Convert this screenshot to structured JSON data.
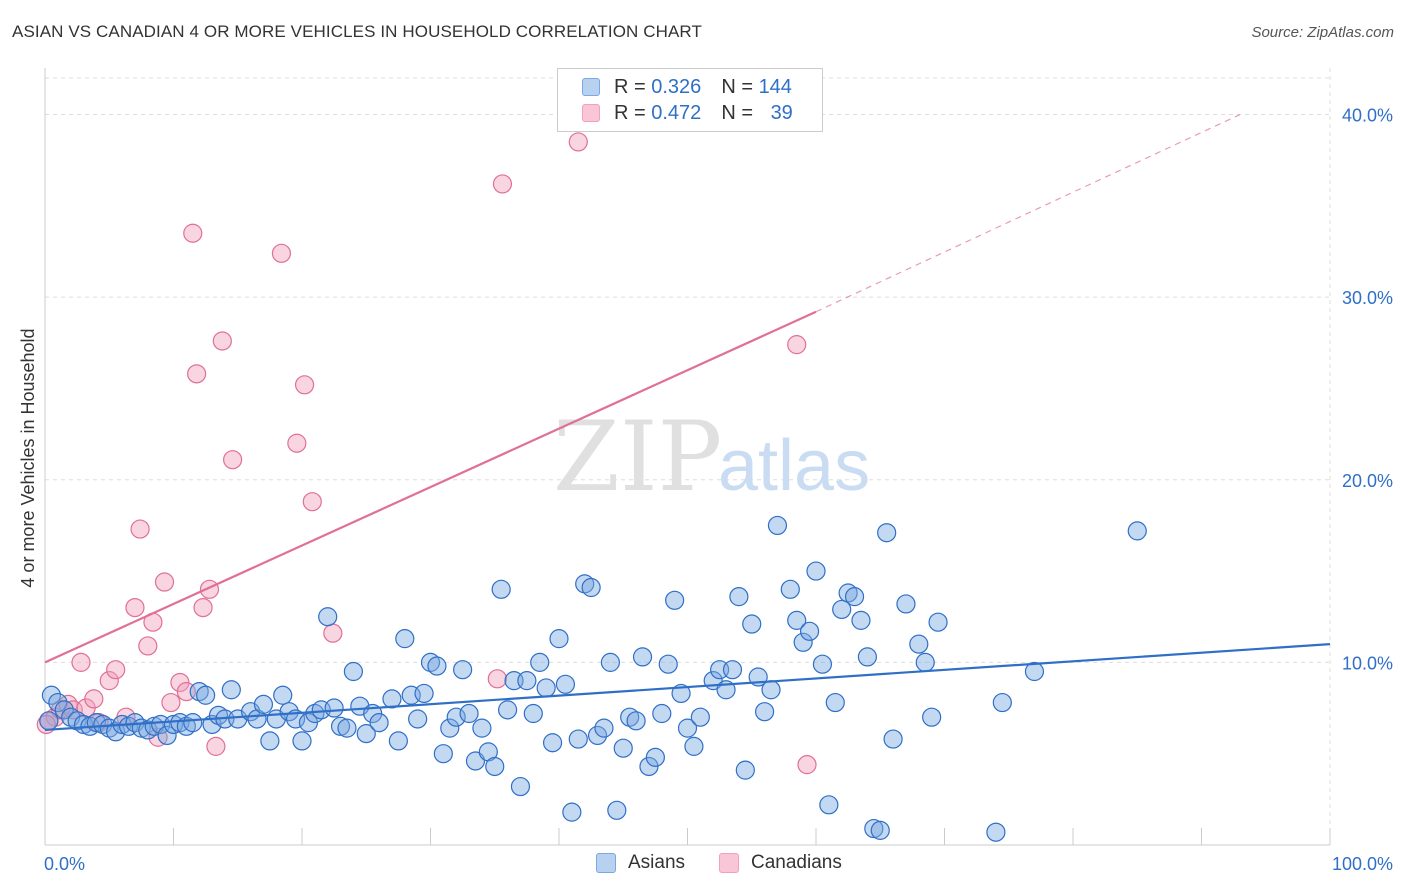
{
  "title": "ASIAN VS CANADIAN 4 OR MORE VEHICLES IN HOUSEHOLD CORRELATION CHART",
  "source": "Source: ZipAtlas.com",
  "watermark": {
    "zip": "ZIP",
    "atlas": "atlas"
  },
  "legend": {
    "rows": [
      {
        "r_label": "R =",
        "r_value": "0.326",
        "n_label": "N =",
        "n_value": "144"
      },
      {
        "r_label": "R =",
        "r_value": "0.472",
        "n_label": "N =",
        "n_value": "39"
      }
    ]
  },
  "chart_data": {
    "type": "scatter",
    "title": "ASIAN VS CANADIAN 4 OR MORE VEHICLES IN HOUSEHOLD CORRELATION CHART",
    "xlabel": "",
    "ylabel": "4 or more Vehicles in Household",
    "xlim": [
      0,
      100
    ],
    "ylim": [
      0,
      42
    ],
    "x_tick_labels": [
      "0.0%",
      "100.0%"
    ],
    "y_ticks": [
      10,
      20,
      30,
      40
    ],
    "y_tick_labels": [
      "10.0%",
      "20.0%",
      "30.0%",
      "40.0%"
    ],
    "grid": true,
    "legend_placement": "top-center",
    "colors": {
      "asians": "#7aa8e0",
      "asians_line": "#2f6fc7",
      "canadians": "#f2a0bc",
      "canadians_line": "#e07095",
      "axis_text": "#2f6fc7"
    },
    "series": [
      {
        "name": "Asians",
        "r": 0.326,
        "n": 144,
        "trend": {
          "x0": 0,
          "y0": 6.3,
          "x1": 100,
          "y1": 11.0
        },
        "points": [
          [
            0.5,
            8.2
          ],
          [
            1,
            7.8
          ],
          [
            1.5,
            7.4
          ],
          [
            2,
            7.0
          ],
          [
            2.5,
            6.8
          ],
          [
            3,
            6.6
          ],
          [
            3.5,
            6.5
          ],
          [
            4,
            6.7
          ],
          [
            4.5,
            6.6
          ],
          [
            5,
            6.4
          ],
          [
            5.5,
            6.2
          ],
          [
            6,
            6.6
          ],
          [
            6.5,
            6.5
          ],
          [
            7,
            6.7
          ],
          [
            7.5,
            6.4
          ],
          [
            8,
            6.3
          ],
          [
            8.5,
            6.5
          ],
          [
            9,
            6.6
          ],
          [
            9.5,
            6.0
          ],
          [
            10,
            6.6
          ],
          [
            10.5,
            6.7
          ],
          [
            11,
            6.5
          ],
          [
            11.5,
            6.7
          ],
          [
            12,
            8.4
          ],
          [
            12.5,
            8.2
          ],
          [
            13,
            6.6
          ],
          [
            13.5,
            7.1
          ],
          [
            14,
            6.9
          ],
          [
            14.5,
            8.5
          ],
          [
            15,
            6.9
          ],
          [
            16,
            7.3
          ],
          [
            16.5,
            6.9
          ],
          [
            17,
            7.7
          ],
          [
            17.5,
            5.7
          ],
          [
            18,
            6.9
          ],
          [
            18.5,
            8.2
          ],
          [
            19,
            7.3
          ],
          [
            19.5,
            6.9
          ],
          [
            20,
            5.7
          ],
          [
            20.5,
            6.7
          ],
          [
            21,
            7.2
          ],
          [
            21.5,
            7.4
          ],
          [
            22,
            12.5
          ],
          [
            22.5,
            7.5
          ],
          [
            23,
            6.5
          ],
          [
            23.5,
            6.4
          ],
          [
            24,
            9.5
          ],
          [
            24.5,
            7.6
          ],
          [
            25,
            6.1
          ],
          [
            25.5,
            7.2
          ],
          [
            26,
            6.7
          ],
          [
            27,
            8.0
          ],
          [
            27.5,
            5.7
          ],
          [
            28,
            11.3
          ],
          [
            28.5,
            8.2
          ],
          [
            29,
            6.9
          ],
          [
            29.5,
            8.3
          ],
          [
            30,
            10.0
          ],
          [
            30.5,
            9.8
          ],
          [
            31,
            5.0
          ],
          [
            31.5,
            6.4
          ],
          [
            32,
            7.0
          ],
          [
            32.5,
            9.6
          ],
          [
            33,
            7.2
          ],
          [
            33.5,
            4.6
          ],
          [
            34,
            6.4
          ],
          [
            34.5,
            5.1
          ],
          [
            35,
            4.3
          ],
          [
            35.5,
            14.0
          ],
          [
            36,
            7.4
          ],
          [
            36.5,
            9.0
          ],
          [
            37,
            3.2
          ],
          [
            37.5,
            9.0
          ],
          [
            38,
            7.2
          ],
          [
            38.5,
            10.0
          ],
          [
            39,
            8.6
          ],
          [
            39.5,
            5.6
          ],
          [
            40,
            11.3
          ],
          [
            40.5,
            8.8
          ],
          [
            41,
            1.8
          ],
          [
            41.5,
            5.8
          ],
          [
            42,
            14.3
          ],
          [
            42.5,
            14.1
          ],
          [
            43,
            6.0
          ],
          [
            43.5,
            6.4
          ],
          [
            44,
            10.0
          ],
          [
            44.5,
            1.9
          ],
          [
            45,
            5.3
          ],
          [
            45.5,
            7.0
          ],
          [
            46,
            6.8
          ],
          [
            46.5,
            10.3
          ],
          [
            47,
            4.3
          ],
          [
            47.5,
            4.8
          ],
          [
            48,
            7.2
          ],
          [
            48.5,
            9.9
          ],
          [
            49,
            13.4
          ],
          [
            49.5,
            8.3
          ],
          [
            50,
            6.4
          ],
          [
            50.5,
            5.4
          ],
          [
            51,
            7.0
          ],
          [
            52,
            9.0
          ],
          [
            52.5,
            9.6
          ],
          [
            53,
            8.5
          ],
          [
            53.5,
            9.6
          ],
          [
            54,
            13.6
          ],
          [
            54.5,
            4.1
          ],
          [
            55,
            12.1
          ],
          [
            55.5,
            9.2
          ],
          [
            56,
            7.3
          ],
          [
            56.5,
            8.5
          ],
          [
            57,
            17.5
          ],
          [
            58,
            14.0
          ],
          [
            58.5,
            12.3
          ],
          [
            59,
            11.1
          ],
          [
            59.5,
            11.7
          ],
          [
            60,
            15.0
          ],
          [
            60.5,
            9.9
          ],
          [
            61,
            2.2
          ],
          [
            61.5,
            7.8
          ],
          [
            62,
            12.9
          ],
          [
            62.5,
            13.8
          ],
          [
            63,
            13.6
          ],
          [
            63.5,
            12.3
          ],
          [
            64,
            10.3
          ],
          [
            64.5,
            0.9
          ],
          [
            65,
            0.8
          ],
          [
            65.5,
            17.1
          ],
          [
            66,
            5.8
          ],
          [
            67,
            13.2
          ],
          [
            68,
            11.0
          ],
          [
            68.5,
            10.0
          ],
          [
            69,
            7.0
          ],
          [
            69.5,
            12.2
          ],
          [
            74,
            0.7
          ],
          [
            74.5,
            7.8
          ],
          [
            77,
            9.5
          ],
          [
            85,
            17.2
          ],
          [
            0.3,
            6.8
          ]
        ]
      },
      {
        "name": "Canadians",
        "r": 0.472,
        "n": 39,
        "trend": {
          "x0": 0,
          "y0": 10.0,
          "x1": 60,
          "y1": 29.2,
          "dash_x1": 93,
          "dash_y1": 40.0
        },
        "points": [
          [
            0.3,
            6.8
          ],
          [
            0.8,
            7.0
          ],
          [
            1.2,
            7.4
          ],
          [
            1.8,
            7.7
          ],
          [
            2.2,
            7.4
          ],
          [
            2.8,
            10.0
          ],
          [
            3.2,
            7.5
          ],
          [
            3.8,
            8.0
          ],
          [
            4.2,
            6.7
          ],
          [
            5,
            9.0
          ],
          [
            5.5,
            9.6
          ],
          [
            6.3,
            7.0
          ],
          [
            7,
            13.0
          ],
          [
            7.4,
            17.3
          ],
          [
            8,
            10.9
          ],
          [
            8.4,
            12.2
          ],
          [
            8.8,
            5.9
          ],
          [
            9.3,
            14.4
          ],
          [
            9.8,
            7.8
          ],
          [
            10.5,
            8.9
          ],
          [
            11,
            8.4
          ],
          [
            11.5,
            33.5
          ],
          [
            11.8,
            25.8
          ],
          [
            12.3,
            13.0
          ],
          [
            12.8,
            14.0
          ],
          [
            13.3,
            5.4
          ],
          [
            13.8,
            27.6
          ],
          [
            14.6,
            21.1
          ],
          [
            18.4,
            32.4
          ],
          [
            19.6,
            22.0
          ],
          [
            20.2,
            25.2
          ],
          [
            20.8,
            18.8
          ],
          [
            22.4,
            11.6
          ],
          [
            35.2,
            9.1
          ],
          [
            35.6,
            36.2
          ],
          [
            58.5,
            27.4
          ],
          [
            59.3,
            4.4
          ],
          [
            41.5,
            38.5
          ],
          [
            0.1,
            6.6
          ]
        ]
      }
    ]
  }
}
